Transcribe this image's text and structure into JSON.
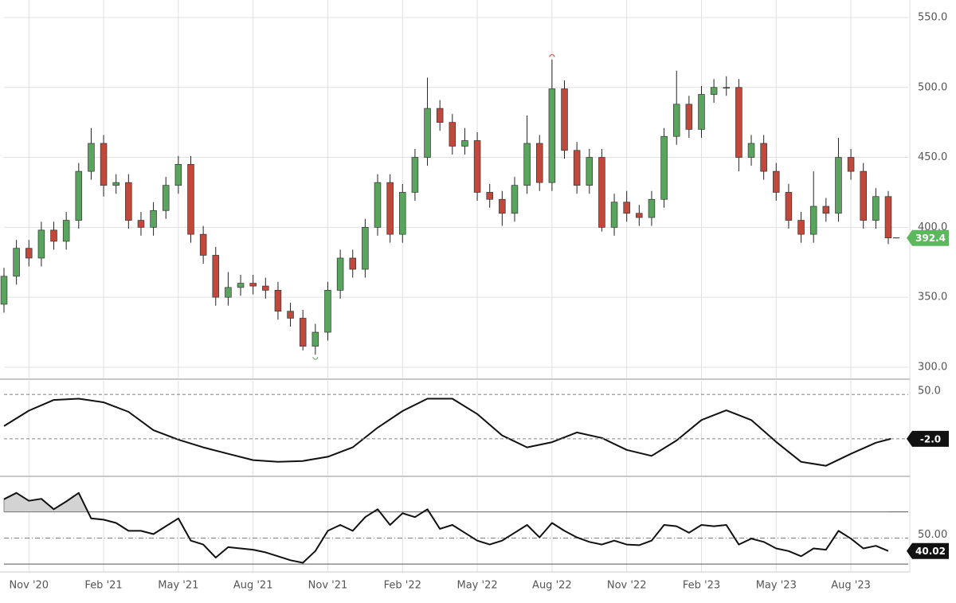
{
  "chart_data": [
    {
      "type": "candlestick",
      "x": [
        0,
        0.5,
        1,
        1.5,
        2,
        2.5,
        3,
        3.5,
        4,
        4.5,
        5,
        5.5,
        6,
        6.5,
        7,
        7.5,
        8,
        8.5,
        9,
        9.5,
        10,
        10.5,
        11,
        11.5,
        12,
        12.5,
        13,
        13.5,
        14,
        14.5,
        15,
        15.5,
        16,
        16.5,
        17,
        17.5,
        18,
        18.5,
        19,
        19.5,
        20,
        20.5,
        21,
        21.5,
        22,
        22.5,
        23,
        23.5,
        24,
        24.5,
        25,
        25.5,
        26,
        26.5,
        27,
        27.5,
        28,
        28.5,
        29,
        29.5,
        30,
        30.5,
        31,
        31.5,
        32,
        32.5,
        33,
        33.5,
        34,
        34.5,
        35,
        35.5
      ],
      "open": [
        345,
        365,
        385,
        378,
        398,
        390,
        405,
        440,
        460,
        430,
        432,
        405,
        400,
        412,
        430,
        445,
        395,
        380,
        350,
        357,
        360,
        358,
        355,
        340,
        335,
        315,
        325,
        355,
        378,
        370,
        400,
        432,
        395,
        425,
        450,
        485,
        475,
        458,
        462,
        425,
        420,
        410,
        430,
        460,
        432,
        499,
        455,
        430,
        450,
        400,
        418,
        410,
        407,
        420,
        465,
        488,
        470,
        495,
        500,
        500,
        450,
        460,
        440,
        425,
        405,
        395,
        415,
        410,
        450,
        440,
        405,
        422
      ],
      "high": [
        371,
        391,
        391,
        404,
        404,
        411,
        446,
        471,
        466,
        438,
        438,
        411,
        418,
        436,
        451,
        451,
        401,
        386,
        368,
        366,
        366,
        364,
        361,
        346,
        341,
        331,
        361,
        384,
        384,
        406,
        438,
        438,
        431,
        456,
        507,
        491,
        481,
        471,
        468,
        431,
        426,
        436,
        480,
        466,
        520,
        505,
        461,
        456,
        456,
        424,
        426,
        416,
        426,
        471,
        512,
        494,
        501,
        506,
        508,
        506,
        466,
        466,
        446,
        431,
        411,
        440,
        421,
        464,
        456,
        446,
        428,
        426
      ],
      "low": [
        339,
        359,
        372,
        372,
        384,
        384,
        399,
        434,
        422,
        424,
        399,
        394,
        394,
        406,
        424,
        389,
        374,
        344,
        344,
        351,
        352,
        349,
        334,
        329,
        312,
        309,
        319,
        349,
        364,
        364,
        394,
        389,
        389,
        419,
        444,
        469,
        452,
        452,
        419,
        414,
        401,
        404,
        424,
        426,
        426,
        449,
        424,
        424,
        397,
        394,
        404,
        401,
        401,
        414,
        459,
        464,
        464,
        489,
        494,
        440,
        444,
        434,
        419,
        399,
        389,
        389,
        404,
        404,
        434,
        399,
        399,
        388
      ],
      "close": [
        365,
        385,
        378,
        398,
        390,
        405,
        440,
        460,
        430,
        432,
        405,
        400,
        412,
        430,
        445,
        395,
        380,
        350,
        357,
        360,
        358,
        355,
        340,
        335,
        315,
        325,
        355,
        378,
        370,
        400,
        432,
        395,
        425,
        450,
        485,
        475,
        458,
        462,
        425,
        420,
        410,
        430,
        460,
        432,
        499,
        455,
        430,
        450,
        400,
        418,
        410,
        407,
        420,
        465,
        488,
        470,
        495,
        500,
        500,
        450,
        460,
        440,
        425,
        405,
        395,
        415,
        410,
        450,
        440,
        405,
        422,
        392.4
      ],
      "up_color": "#5aa55e",
      "down_color": "#c0493b",
      "last_color": "#5cb85c",
      "xlim": [
        0,
        36.3
      ],
      "ylim": [
        292,
        562.5
      ],
      "yticks": [
        {
          "value": 300,
          "label": "300.0"
        },
        {
          "value": 350,
          "label": "350.0"
        },
        {
          "value": 400,
          "label": "400.0"
        },
        {
          "value": 450,
          "label": "450.0"
        },
        {
          "value": 500,
          "label": "500.0"
        },
        {
          "value": 550,
          "label": "550.0"
        }
      ],
      "grid": true
    },
    {
      "type": "line",
      "x": [
        0,
        1,
        2,
        3,
        4,
        5,
        6,
        7,
        8,
        9,
        10,
        11,
        12,
        13,
        14,
        15,
        16,
        17,
        18,
        19,
        20,
        21,
        22,
        23,
        24,
        25,
        26,
        27,
        28,
        29,
        30,
        31,
        32,
        33,
        34,
        35,
        35.6
      ],
      "values": [
        12.9,
        31,
        43.5,
        45,
        40.7,
        29.6,
        8,
        -3,
        -12,
        -19.6,
        -27,
        -29,
        -28,
        -23,
        -12,
        11,
        30.5,
        45,
        45,
        27,
        2,
        -12,
        -6,
        5.4,
        -1,
        -15,
        -22,
        -4,
        20,
        31.4,
        20,
        -5.7,
        -29,
        -33.6,
        -19.6,
        -6.6,
        -2.0
      ],
      "value_labels": [
        null,
        null,
        null,
        null,
        null,
        null,
        null,
        null,
        null,
        null,
        null,
        null,
        null,
        null,
        null,
        null,
        null,
        null,
        null,
        null,
        null,
        null,
        null,
        null,
        null,
        null,
        null,
        null,
        null,
        null,
        null,
        null,
        null,
        null,
        null,
        null,
        "-2.0"
      ],
      "color": "#111111",
      "xlim": [
        0,
        36.3
      ],
      "ylim": [
        -46,
        66
      ],
      "yticks": [
        {
          "value": 50,
          "label": "50.0"
        }
      ],
      "grid": true
    },
    {
      "type": "line",
      "x": [
        0,
        0.5,
        1,
        1.5,
        2,
        2.5,
        3,
        3.5,
        4,
        4.5,
        5,
        5.5,
        6,
        6.5,
        7,
        7.5,
        8,
        8.5,
        9,
        9.5,
        10,
        10.5,
        11,
        11.5,
        12,
        12.5,
        13,
        13.5,
        14,
        14.5,
        15,
        15.5,
        16,
        16.5,
        17,
        17.5,
        18,
        18.5,
        19,
        19.5,
        20,
        20.5,
        21,
        21.5,
        22,
        22.5,
        23,
        23.5,
        24,
        24.5,
        25,
        25.5,
        26,
        26.5,
        27,
        27.5,
        28,
        28.5,
        29,
        29.5,
        30,
        30.5,
        31,
        31.5,
        32,
        32.5,
        33,
        33.5,
        34,
        34.5,
        35,
        35.5
      ],
      "values": [
        79.7,
        84.5,
        78.5,
        80,
        72,
        78,
        84.5,
        65,
        64,
        61.5,
        55.5,
        55.5,
        53,
        59,
        65,
        48,
        45,
        35,
        43,
        42,
        41,
        39,
        36,
        33,
        31,
        40,
        55.5,
        60,
        55.5,
        66,
        72,
        60,
        69,
        66,
        72,
        57,
        60,
        54,
        48,
        45,
        48,
        54,
        60,
        50.5,
        61.5,
        55.5,
        50.5,
        47,
        45,
        48,
        45,
        44.5,
        48,
        60,
        59,
        54,
        60,
        59,
        60,
        45,
        49.5,
        47,
        42,
        40,
        36,
        42,
        41,
        55.5,
        49.5,
        42,
        44,
        40.02
      ],
      "color": "#111111",
      "levels": [
        70,
        30
      ],
      "xlim": [
        0,
        36.3
      ],
      "ylim": [
        24,
        96
      ],
      "yticks": [
        {
          "value": 50,
          "label": "50.00"
        }
      ],
      "xticks": [
        {
          "value": 1,
          "label": "Nov '20"
        },
        {
          "value": 4,
          "label": "Feb '21"
        },
        {
          "value": 7,
          "label": "May '21"
        },
        {
          "value": 10,
          "label": "Aug '21"
        },
        {
          "value": 13,
          "label": "Nov '21"
        },
        {
          "value": 16,
          "label": "Feb '22"
        },
        {
          "value": 19,
          "label": "May '22"
        },
        {
          "value": 22,
          "label": "Aug '22"
        },
        {
          "value": 25,
          "label": "Nov '22"
        },
        {
          "value": 28,
          "label": "Feb '23"
        },
        {
          "value": 31,
          "label": "May '23"
        },
        {
          "value": 34,
          "label": "Aug '23"
        }
      ],
      "grid": true
    }
  ]
}
